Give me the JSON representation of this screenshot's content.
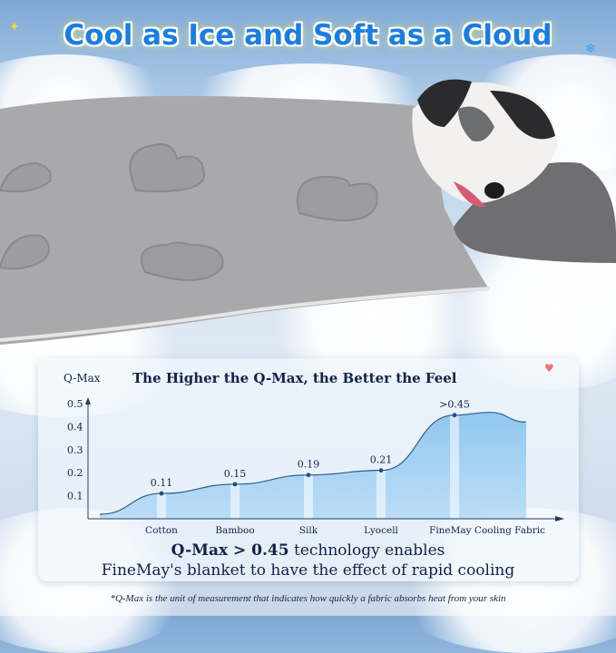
{
  "headline": "Cool as Ice and Soft as a Cloud",
  "chart_data": {
    "type": "area",
    "title": "The Higher the Q-Max, the Better the Feel",
    "ylabel": "Q-Max",
    "xlabel": "",
    "categories": [
      "Cotton",
      "Bamboo",
      "Silk",
      "Lyocell",
      "FineMay Cooling Fabric"
    ],
    "values": [
      0.11,
      0.15,
      0.19,
      0.21,
      0.45
    ],
    "data_labels": [
      "0.11",
      "0.15",
      "0.19",
      "0.21",
      ">0.45"
    ],
    "yticks": [
      "0.1",
      "0.2",
      "0.3",
      "0.4",
      "0.5"
    ],
    "ylim": [
      0,
      0.5
    ],
    "grid": false,
    "fill_color": "#7fc0ee",
    "line_color": "#2f5f8a"
  },
  "caption": {
    "bold_part": "Q-Max > 0.45",
    "rest_line1": " technology enables",
    "line2": "FineMay's blanket to have the effect of rapid cooling"
  },
  "footnote": "*Q-Max is the unit of measurement that indicates how quickly a fabric absorbs heat from your skin"
}
